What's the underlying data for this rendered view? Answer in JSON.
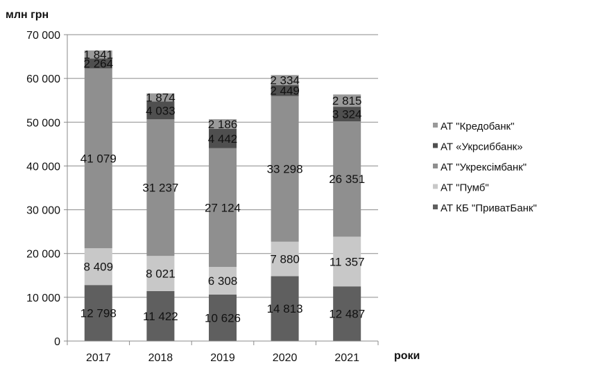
{
  "chart_data": {
    "type": "bar",
    "stacked": true,
    "unit_label": "млн грн",
    "xlabel": "роки",
    "ylabel": "",
    "ylim": [
      0,
      70000
    ],
    "y_ticks": [
      "0",
      "10 000",
      "20 000",
      "30 000",
      "40 000",
      "50 000",
      "60 000",
      "70 000"
    ],
    "grid": true,
    "legend_position": "right",
    "categories": [
      "2017",
      "2018",
      "2019",
      "2020",
      "2021"
    ],
    "series": [
      {
        "name": "АТ КБ \"ПриватБанк\"",
        "color": "#5f5f5f",
        "values": [
          12798,
          11422,
          10626,
          14813,
          12487
        ],
        "labels": [
          "12 798",
          "11 422",
          "10 626",
          "14 813",
          "12 487"
        ]
      },
      {
        "name": "АТ \"Пумб\"",
        "color": "#c8c8c8",
        "values": [
          8409,
          8021,
          6308,
          7880,
          11357
        ],
        "labels": [
          "8 409",
          "8 021",
          "6 308",
          "7 880",
          "11 357"
        ]
      },
      {
        "name": "АТ \"Укрексімбанк\"",
        "color": "#8f8f8f",
        "values": [
          41079,
          31237,
          27124,
          33298,
          26351
        ],
        "labels": [
          "41 079",
          "31 237",
          "27 124",
          "33 298",
          "26 351"
        ]
      },
      {
        "name": "АТ «Укрсиббанк»",
        "color": "#4f4f4f",
        "values": [
          2264,
          4033,
          4442,
          2449,
          3324
        ],
        "labels": [
          "2 264",
          "4 033",
          "4 442",
          "2 449",
          "3 324"
        ]
      },
      {
        "name": "АТ \"Кредобанк\"",
        "color": "#9a9a9a",
        "values": [
          1841,
          1874,
          2186,
          2334,
          2815
        ],
        "labels": [
          "1 841",
          "1 874",
          "2 186",
          "2 334",
          "2 815"
        ]
      }
    ]
  }
}
